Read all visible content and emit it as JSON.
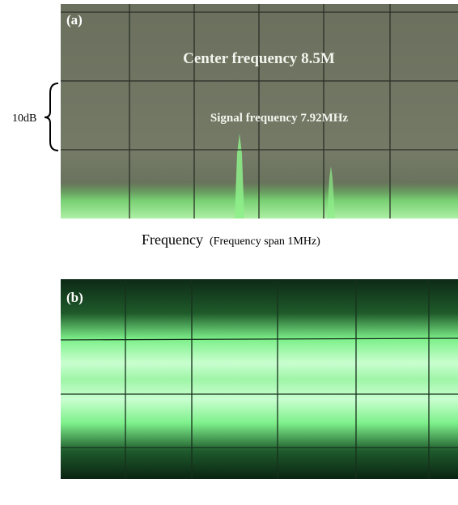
{
  "panels": [
    {
      "label": "(a)",
      "annotations": [
        "Center frequency 8.5M",
        "Signal frequency 7.92MHz"
      ],
      "y_scale_label": "10dB",
      "x_axis_label": "Frequency",
      "x_axis_note": "(Frequency span 1MHz)"
    },
    {
      "label": "(b)"
    }
  ]
}
